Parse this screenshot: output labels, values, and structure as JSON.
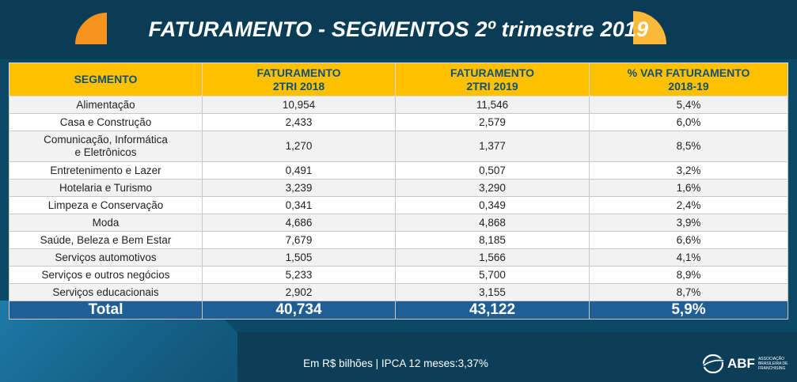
{
  "title": "FATURAMENTO - SEGMENTOS 2º trimestre 2019",
  "colors": {
    "header_bg": "#ffc000",
    "header_text": "#12507a",
    "total_bg": "#1f5f95",
    "background": "#0b4a66"
  },
  "table": {
    "headers": [
      {
        "line1": "SEGMENTO",
        "line2": ""
      },
      {
        "line1": "FATURAMENTO",
        "line2": "2TRI 2018"
      },
      {
        "line1": "FATURAMENTO",
        "line2": "2TRI 2019"
      },
      {
        "line1": "% VAR FATURAMENTO",
        "line2": "2018-19"
      }
    ],
    "rows": [
      {
        "segment": "Alimentação",
        "segment2": "",
        "v2018": "10,954",
        "v2019": "11,546",
        "var": "5,4%"
      },
      {
        "segment": "Casa e Construção",
        "segment2": "",
        "v2018": "2,433",
        "v2019": "2,579",
        "var": "6,0%"
      },
      {
        "segment": "Comunicação, Informática",
        "segment2": "e Eletrônicos",
        "v2018": "1,270",
        "v2019": "1,377",
        "var": "8,5%"
      },
      {
        "segment": "Entretenimento e Lazer",
        "segment2": "",
        "v2018": "0,491",
        "v2019": "0,507",
        "var": "3,2%"
      },
      {
        "segment": "Hotelaria e Turismo",
        "segment2": "",
        "v2018": "3,239",
        "v2019": "3,290",
        "var": "1,6%"
      },
      {
        "segment": "Limpeza e Conservação",
        "segment2": "",
        "v2018": "0,341",
        "v2019": "0,349",
        "var": "2,4%"
      },
      {
        "segment": "Moda",
        "segment2": "",
        "v2018": "4,686",
        "v2019": "4,868",
        "var": "3,9%"
      },
      {
        "segment": "Saúde, Beleza e Bem Estar",
        "segment2": "",
        "v2018": "7,679",
        "v2019": "8,185",
        "var": "6,6%"
      },
      {
        "segment": "Serviços automotivos",
        "segment2": "",
        "v2018": "1,505",
        "v2019": "1,566",
        "var": "4,1%"
      },
      {
        "segment": "Serviços e outros negócios",
        "segment2": "",
        "v2018": "5,233",
        "v2019": "5,700",
        "var": "8,9%"
      },
      {
        "segment": "Serviços educacionais",
        "segment2": "",
        "v2018": "2,902",
        "v2019": "3,155",
        "var": "8,7%"
      }
    ],
    "total": {
      "label": "Total",
      "v2018": "40,734",
      "v2019": "43,122",
      "var": "5,9%"
    }
  },
  "footnote": "Em R$ bilhões  |  IPCA 12 meses:3,37%",
  "logo": {
    "name": "ABF",
    "subtitle": "ASSOCIAÇÃO BRASILEIRA DE FRANCHISING"
  }
}
